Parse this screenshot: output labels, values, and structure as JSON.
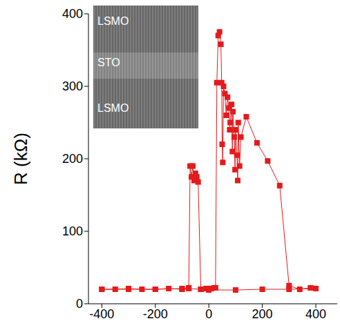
{
  "chart_data": {
    "type": "line",
    "ylabel": "R (kΩ)",
    "color": "#e41a1c",
    "marker": "square",
    "line_style": "solid",
    "xlim": [
      -450,
      480
    ],
    "xticks": [
      -400,
      -200,
      0,
      200,
      400
    ],
    "ylim": [
      0,
      400
    ],
    "yticks": [
      0,
      100,
      200,
      300,
      400
    ],
    "annotations": [
      "LSMO",
      "STO",
      "LSMO"
    ],
    "x": [
      -400,
      -350,
      -300,
      -250,
      -200,
      -150,
      -100,
      -75,
      -30,
      -10,
      0,
      10,
      20,
      25,
      30,
      35,
      40,
      45,
      48,
      50,
      52,
      55,
      60,
      65,
      70,
      75,
      78,
      80,
      85,
      88,
      90,
      95,
      98,
      100,
      105,
      108,
      110,
      115,
      120,
      140,
      180,
      220,
      265,
      300,
      340,
      380,
      400,
      300,
      200,
      100,
      0,
      -30,
      -40,
      -45,
      -50,
      -55,
      -60,
      -65,
      -70,
      -75,
      -100,
      -200,
      -300,
      -400
    ],
    "values": [
      20,
      20,
      21,
      20,
      20,
      21,
      20,
      21,
      20,
      21,
      21,
      21,
      22,
      22,
      305,
      370,
      375,
      358,
      305,
      220,
      195,
      300,
      290,
      260,
      285,
      270,
      240,
      250,
      275,
      210,
      265,
      230,
      185,
      240,
      205,
      170,
      250,
      190,
      230,
      258,
      222,
      197,
      163,
      25,
      20,
      22,
      21,
      20,
      20,
      19,
      19,
      20,
      168,
      175,
      180,
      170,
      190,
      175,
      190,
      22,
      21,
      20,
      20,
      20
    ]
  }
}
